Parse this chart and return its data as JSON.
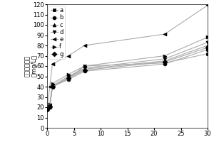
{
  "x": [
    0,
    0.5,
    1,
    4,
    7,
    22,
    30
  ],
  "series": {
    "a": {
      "y": [
        21,
        22,
        40,
        48,
        60,
        63,
        72
      ],
      "marker": "s",
      "label": "a"
    },
    "b": {
      "y": [
        19,
        20,
        40,
        47,
        55,
        62,
        76
      ],
      "marker": "o",
      "label": "b"
    },
    "c": {
      "y": [
        18,
        21,
        40,
        49,
        57,
        65,
        80
      ],
      "marker": "^",
      "label": "c"
    },
    "d": {
      "y": [
        18,
        22,
        41,
        50,
        58,
        67,
        83
      ],
      "marker": "v",
      "label": "d"
    },
    "e": {
      "y": [
        18,
        40,
        62,
        70,
        80,
        91,
        119
      ],
      "marker": "<",
      "label": "e"
    },
    "f": {
      "y": [
        18,
        23,
        43,
        52,
        60,
        70,
        88
      ],
      "marker": ">",
      "label": "f"
    },
    "g": {
      "y": [
        18,
        21,
        40,
        48,
        56,
        64,
        78
      ],
      "marker": "D",
      "label": "g"
    }
  },
  "ylabel_top": "溶解性总固体",
  "ylabel_bottom": "（mg/L）",
  "xlim": [
    0,
    30
  ],
  "ylim": [
    0,
    120
  ],
  "xticks": [
    0,
    5,
    10,
    15,
    20,
    25,
    30
  ],
  "yticks": [
    0,
    10,
    20,
    30,
    40,
    50,
    60,
    70,
    80,
    90,
    100,
    110,
    120
  ],
  "line_color": "#aaaaaa",
  "marker_color": "#000000",
  "markersize": 3.5,
  "linewidth": 0.8,
  "fontsize": 6,
  "tick_fontsize": 6
}
